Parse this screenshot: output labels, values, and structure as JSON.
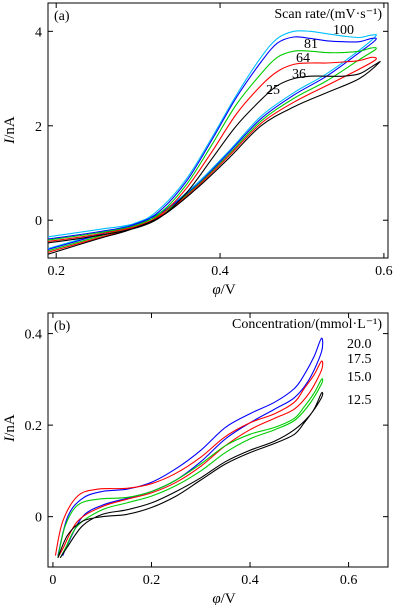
{
  "chart_data": [
    {
      "type": "line",
      "panel_tag": "(a)",
      "xlabel_var": "φ",
      "xlabel_unit": "/V",
      "ylabel_var": "I",
      "ylabel_unit": "/nA",
      "xlim": [
        0.19,
        0.605
      ],
      "ylim": [
        -0.8,
        4.6
      ],
      "xticks": [
        0.2,
        0.4,
        0.6
      ],
      "xtick_labels": [
        "0.2",
        "0.4",
        "0.6"
      ],
      "yticks": [
        0,
        2,
        4
      ],
      "ytick_labels": [
        "0",
        "2",
        "4"
      ],
      "grid": false,
      "legend_title": "Scan rate/(mV·s⁻¹)",
      "series": [
        {
          "name": "100",
          "color": "#00bfff",
          "forward": [
            [
              0.19,
              -0.35
            ],
            [
              0.25,
              -0.2
            ],
            [
              0.3,
              -0.05
            ],
            [
              0.33,
              0.3
            ],
            [
              0.36,
              0.9
            ],
            [
              0.39,
              1.75
            ],
            [
              0.42,
              2.65
            ],
            [
              0.45,
              3.45
            ],
            [
              0.47,
              3.85
            ],
            [
              0.49,
              4.0
            ],
            [
              0.51,
              4.0
            ],
            [
              0.53,
              3.95
            ],
            [
              0.55,
              3.9
            ],
            [
              0.57,
              3.87
            ],
            [
              0.585,
              3.92
            ]
          ],
          "reverse": [
            [
              0.59,
              3.9
            ],
            [
              0.57,
              3.6
            ],
            [
              0.53,
              3.1
            ],
            [
              0.49,
              2.7
            ],
            [
              0.45,
              2.2
            ],
            [
              0.41,
              1.45
            ],
            [
              0.37,
              0.75
            ],
            [
              0.33,
              0.2
            ],
            [
              0.29,
              -0.1
            ],
            [
              0.25,
              -0.3
            ],
            [
              0.19,
              -0.6
            ]
          ]
        },
        {
          "name": "81",
          "color": "#0000ff",
          "forward": [
            [
              0.19,
              -0.4
            ],
            [
              0.25,
              -0.25
            ],
            [
              0.3,
              -0.08
            ],
            [
              0.33,
              0.25
            ],
            [
              0.36,
              0.85
            ],
            [
              0.39,
              1.7
            ],
            [
              0.42,
              2.6
            ],
            [
              0.45,
              3.35
            ],
            [
              0.47,
              3.75
            ],
            [
              0.49,
              3.88
            ],
            [
              0.51,
              3.85
            ],
            [
              0.53,
              3.8
            ],
            [
              0.55,
              3.78
            ],
            [
              0.57,
              3.78
            ],
            [
              0.585,
              3.85
            ]
          ],
          "reverse": [
            [
              0.59,
              3.82
            ],
            [
              0.57,
              3.55
            ],
            [
              0.53,
              3.05
            ],
            [
              0.49,
              2.65
            ],
            [
              0.45,
              2.15
            ],
            [
              0.41,
              1.42
            ],
            [
              0.37,
              0.72
            ],
            [
              0.33,
              0.18
            ],
            [
              0.29,
              -0.12
            ],
            [
              0.25,
              -0.32
            ],
            [
              0.19,
              -0.62
            ]
          ]
        },
        {
          "name": "64",
          "color": "#00cc00",
          "forward": [
            [
              0.19,
              -0.42
            ],
            [
              0.25,
              -0.27
            ],
            [
              0.3,
              -0.1
            ],
            [
              0.33,
              0.2
            ],
            [
              0.36,
              0.78
            ],
            [
              0.39,
              1.6
            ],
            [
              0.42,
              2.45
            ],
            [
              0.45,
              3.1
            ],
            [
              0.47,
              3.45
            ],
            [
              0.49,
              3.58
            ],
            [
              0.51,
              3.58
            ],
            [
              0.53,
              3.55
            ],
            [
              0.55,
              3.55
            ],
            [
              0.57,
              3.58
            ],
            [
              0.585,
              3.65
            ]
          ],
          "reverse": [
            [
              0.59,
              3.62
            ],
            [
              0.57,
              3.4
            ],
            [
              0.53,
              2.95
            ],
            [
              0.49,
              2.58
            ],
            [
              0.45,
              2.1
            ],
            [
              0.41,
              1.38
            ],
            [
              0.37,
              0.7
            ],
            [
              0.33,
              0.15
            ],
            [
              0.29,
              -0.15
            ],
            [
              0.25,
              -0.35
            ],
            [
              0.19,
              -0.65
            ]
          ]
        },
        {
          "name": "36",
          "color": "#ff0000",
          "forward": [
            [
              0.19,
              -0.45
            ],
            [
              0.25,
              -0.3
            ],
            [
              0.3,
              -0.12
            ],
            [
              0.33,
              0.15
            ],
            [
              0.36,
              0.7
            ],
            [
              0.39,
              1.45
            ],
            [
              0.42,
              2.25
            ],
            [
              0.45,
              2.85
            ],
            [
              0.47,
              3.15
            ],
            [
              0.49,
              3.3
            ],
            [
              0.51,
              3.33
            ],
            [
              0.53,
              3.33
            ],
            [
              0.55,
              3.35
            ],
            [
              0.57,
              3.38
            ],
            [
              0.585,
              3.45
            ]
          ],
          "reverse": [
            [
              0.59,
              3.4
            ],
            [
              0.57,
              3.2
            ],
            [
              0.53,
              2.85
            ],
            [
              0.49,
              2.5
            ],
            [
              0.45,
              2.05
            ],
            [
              0.41,
              1.35
            ],
            [
              0.37,
              0.68
            ],
            [
              0.33,
              0.12
            ],
            [
              0.29,
              -0.18
            ],
            [
              0.25,
              -0.38
            ],
            [
              0.19,
              -0.68
            ]
          ]
        },
        {
          "name": "25",
          "color": "#000000",
          "forward": [
            [
              0.19,
              -0.48
            ],
            [
              0.25,
              -0.33
            ],
            [
              0.3,
              -0.15
            ],
            [
              0.33,
              0.1
            ],
            [
              0.36,
              0.6
            ],
            [
              0.39,
              1.3
            ],
            [
              0.42,
              2.0
            ],
            [
              0.45,
              2.55
            ],
            [
              0.47,
              2.85
            ],
            [
              0.49,
              3.0
            ],
            [
              0.51,
              3.05
            ],
            [
              0.53,
              3.05
            ],
            [
              0.55,
              3.05
            ],
            [
              0.57,
              3.1
            ],
            [
              0.585,
              3.25
            ]
          ],
          "reverse": [
            [
              0.595,
              3.35
            ],
            [
              0.57,
              3.0
            ],
            [
              0.53,
              2.7
            ],
            [
              0.49,
              2.4
            ],
            [
              0.45,
              2.0
            ],
            [
              0.41,
              1.3
            ],
            [
              0.37,
              0.65
            ],
            [
              0.33,
              0.1
            ],
            [
              0.29,
              -0.2
            ],
            [
              0.25,
              -0.4
            ],
            [
              0.19,
              -0.72
            ]
          ]
        }
      ]
    },
    {
      "type": "line",
      "panel_tag": "(b)",
      "xlabel_var": "φ",
      "xlabel_unit": "/V",
      "ylabel_var": "I",
      "ylabel_unit": "/nA",
      "xlim": [
        -0.01,
        0.68
      ],
      "ylim": [
        -0.11,
        0.445
      ],
      "xticks": [
        0,
        0.2,
        0.4,
        0.6
      ],
      "xtick_labels": [
        "0",
        "0.2",
        "0.4",
        "0.6"
      ],
      "yticks": [
        0,
        0.2,
        0.4
      ],
      "ytick_labels": [
        "0",
        "0.2",
        "0.4"
      ],
      "grid": false,
      "legend_title": "Concentration/(mmol·L⁻¹)",
      "series": [
        {
          "name": "20.0",
          "color": "#0000ff",
          "forward": [
            [
              0.01,
              -0.085
            ],
            [
              0.03,
              0.0
            ],
            [
              0.06,
              0.04
            ],
            [
              0.1,
              0.055
            ],
            [
              0.15,
              0.06
            ],
            [
              0.2,
              0.075
            ],
            [
              0.25,
              0.105
            ],
            [
              0.3,
              0.145
            ],
            [
              0.35,
              0.195
            ],
            [
              0.4,
              0.225
            ],
            [
              0.45,
              0.25
            ],
            [
              0.49,
              0.28
            ],
            [
              0.51,
              0.31
            ],
            [
              0.53,
              0.35
            ],
            [
              0.545,
              0.39
            ]
          ],
          "reverse": [
            [
              0.545,
              0.36
            ],
            [
              0.52,
              0.3
            ],
            [
              0.49,
              0.26
            ],
            [
              0.45,
              0.235
            ],
            [
              0.4,
              0.205
            ],
            [
              0.35,
              0.17
            ],
            [
              0.3,
              0.12
            ],
            [
              0.25,
              0.08
            ],
            [
              0.2,
              0.055
            ],
            [
              0.15,
              0.04
            ],
            [
              0.1,
              0.025
            ],
            [
              0.06,
              0.0
            ],
            [
              0.03,
              -0.06
            ],
            [
              0.02,
              -0.085
            ]
          ]
        },
        {
          "name": "17.5",
          "color": "#ff0000",
          "forward": [
            [
              0.005,
              -0.085
            ],
            [
              0.02,
              -0.01
            ],
            [
              0.05,
              0.045
            ],
            [
              0.09,
              0.06
            ],
            [
              0.15,
              0.062
            ],
            [
              0.2,
              0.072
            ],
            [
              0.25,
              0.095
            ],
            [
              0.3,
              0.13
            ],
            [
              0.35,
              0.175
            ],
            [
              0.4,
              0.205
            ],
            [
              0.45,
              0.225
            ],
            [
              0.49,
              0.25
            ],
            [
              0.51,
              0.28
            ],
            [
              0.53,
              0.31
            ],
            [
              0.545,
              0.34
            ]
          ],
          "reverse": [
            [
              0.545,
              0.32
            ],
            [
              0.52,
              0.27
            ],
            [
              0.49,
              0.235
            ],
            [
              0.45,
              0.215
            ],
            [
              0.4,
              0.19
            ],
            [
              0.35,
              0.155
            ],
            [
              0.3,
              0.11
            ],
            [
              0.25,
              0.075
            ],
            [
              0.2,
              0.052
            ],
            [
              0.15,
              0.038
            ],
            [
              0.1,
              0.022
            ],
            [
              0.05,
              -0.01
            ],
            [
              0.02,
              -0.07
            ],
            [
              0.01,
              -0.09
            ]
          ]
        },
        {
          "name": "15.0",
          "color": "#00cc00",
          "forward": [
            [
              0.01,
              -0.09
            ],
            [
              0.025,
              -0.02
            ],
            [
              0.05,
              0.025
            ],
            [
              0.09,
              0.038
            ],
            [
              0.15,
              0.042
            ],
            [
              0.2,
              0.055
            ],
            [
              0.25,
              0.08
            ],
            [
              0.3,
              0.115
            ],
            [
              0.35,
              0.155
            ],
            [
              0.4,
              0.18
            ],
            [
              0.45,
              0.195
            ],
            [
              0.49,
              0.215
            ],
            [
              0.51,
              0.24
            ],
            [
              0.53,
              0.27
            ],
            [
              0.545,
              0.3
            ]
          ],
          "reverse": [
            [
              0.545,
              0.29
            ],
            [
              0.52,
              0.245
            ],
            [
              0.49,
              0.21
            ],
            [
              0.45,
              0.19
            ],
            [
              0.4,
              0.17
            ],
            [
              0.35,
              0.14
            ],
            [
              0.3,
              0.1
            ],
            [
              0.25,
              0.068
            ],
            [
              0.2,
              0.045
            ],
            [
              0.15,
              0.03
            ],
            [
              0.1,
              0.015
            ],
            [
              0.05,
              -0.02
            ],
            [
              0.025,
              -0.07
            ],
            [
              0.015,
              -0.09
            ]
          ]
        },
        {
          "name": "12.5",
          "color": "#000000",
          "forward": [
            [
              0.01,
              -0.09
            ],
            [
              0.03,
              -0.04
            ],
            [
              0.06,
              -0.01
            ],
            [
              0.1,
              0.0
            ],
            [
              0.15,
              0.005
            ],
            [
              0.2,
              0.02
            ],
            [
              0.25,
              0.045
            ],
            [
              0.3,
              0.08
            ],
            [
              0.35,
              0.115
            ],
            [
              0.4,
              0.14
            ],
            [
              0.45,
              0.16
            ],
            [
              0.49,
              0.18
            ],
            [
              0.51,
              0.205
            ],
            [
              0.53,
              0.235
            ],
            [
              0.545,
              0.27
            ]
          ],
          "reverse": [
            [
              0.545,
              0.26
            ],
            [
              0.52,
              0.22
            ],
            [
              0.49,
              0.19
            ],
            [
              0.45,
              0.165
            ],
            [
              0.4,
              0.145
            ],
            [
              0.35,
              0.12
            ],
            [
              0.3,
              0.085
            ],
            [
              0.25,
              0.055
            ],
            [
              0.2,
              0.03
            ],
            [
              0.15,
              0.015
            ],
            [
              0.1,
              0.005
            ],
            [
              0.06,
              -0.02
            ],
            [
              0.03,
              -0.065
            ],
            [
              0.015,
              -0.09
            ]
          ]
        }
      ]
    }
  ]
}
